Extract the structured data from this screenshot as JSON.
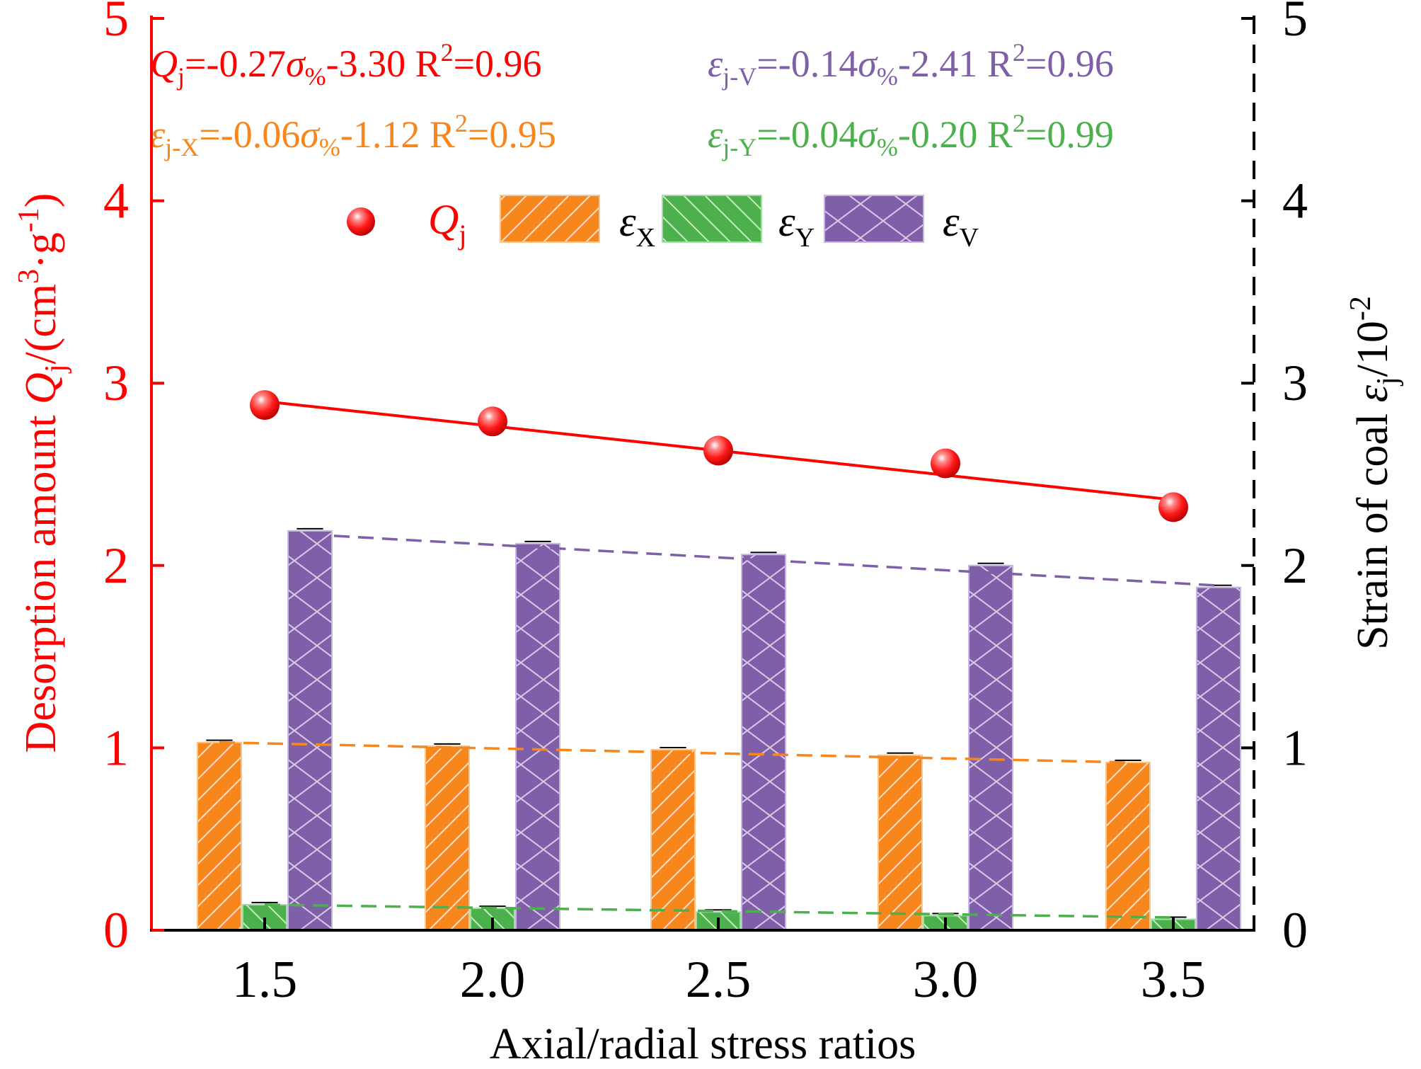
{
  "chart_data": {
    "type": "bar",
    "title": "",
    "categories": [
      "1.5",
      "2.0",
      "2.5",
      "3.0",
      "3.5"
    ],
    "xlabel": "Axial/radial stress ratios",
    "ylabel_left": {
      "prefix": "Desorption amount ",
      "var": "Q",
      "sub": "j",
      "unit_open": "/(cm",
      "sup1": "3",
      "unit_mid": "·g",
      "sup2": "-1",
      "unit_close": ")"
    },
    "ylabel_right": {
      "prefix": "Strain of coal ",
      "var": "ε",
      "sub": "j",
      "unit": "/10",
      "sup": "-2"
    },
    "ylim_left": [
      0,
      5
    ],
    "ylim_right": [
      0,
      5
    ],
    "yticks": [
      "0",
      "1",
      "2",
      "3",
      "4",
      "5"
    ],
    "series": [
      {
        "name": "εX",
        "sym": "ε",
        "sub": "X",
        "color": "#f7861c",
        "values": [
          1.03,
          1.01,
          0.99,
          0.96,
          0.92
        ]
      },
      {
        "name": "εY",
        "sym": "ε",
        "sub": "Y",
        "color": "#4cb04c",
        "values": [
          0.14,
          0.12,
          0.1,
          0.08,
          0.06
        ]
      },
      {
        "name": "εV",
        "sym": "ε",
        "sub": "V",
        "color": "#7f5fa8",
        "values": [
          2.19,
          2.12,
          2.06,
          2.0,
          1.88
        ]
      }
    ],
    "line_series": {
      "name": "Qj",
      "sym": "Q",
      "sub": "j",
      "color": "#ff0000",
      "values": [
        2.88,
        2.79,
        2.63,
        2.56,
        2.32
      ]
    },
    "fits": [
      {
        "series": "Qj",
        "color": "#ff0000",
        "y_start": 2.9,
        "y_end": 2.36
      },
      {
        "series": "εV",
        "color": "#7f5fa8",
        "y_start": 2.17,
        "y_end": 1.89
      },
      {
        "series": "εX",
        "color": "#f7861c",
        "y_start": 1.03,
        "y_end": 0.92
      },
      {
        "series": "εY",
        "color": "#4cb04c",
        "y_start": 0.14,
        "y_end": 0.07
      }
    ],
    "equations": [
      {
        "color": "#ff0000",
        "sym": "Q",
        "sub": "j",
        "mid": "=-0.27",
        "sigma": "σ",
        "sigsub": "%",
        "tail": "-3.30  R",
        "sup": "2",
        "end": "=0.96"
      },
      {
        "color": "#7f5fa8",
        "sym": "ε",
        "sub": "j-V",
        "mid": "=-0.14",
        "sigma": "σ",
        "sigsub": "%",
        "tail": "-2.41  R",
        "sup": "2",
        "end": "=0.96"
      },
      {
        "color": "#f7861c",
        "sym": "ε",
        "sub": "j-X",
        "mid": "=-0.06",
        "sigma": "σ",
        "sigsub": "%",
        "tail": "-1.12 R",
        "sup": "2",
        "end": "=0.95"
      },
      {
        "color": "#4cb04c",
        "sym": "ε",
        "sub": "j-Y",
        "mid": "=-0.04",
        "sigma": "σ",
        "sigsub": "%",
        "tail": "-0.20  R",
        "sup": "2",
        "end": "=0.99"
      }
    ]
  }
}
